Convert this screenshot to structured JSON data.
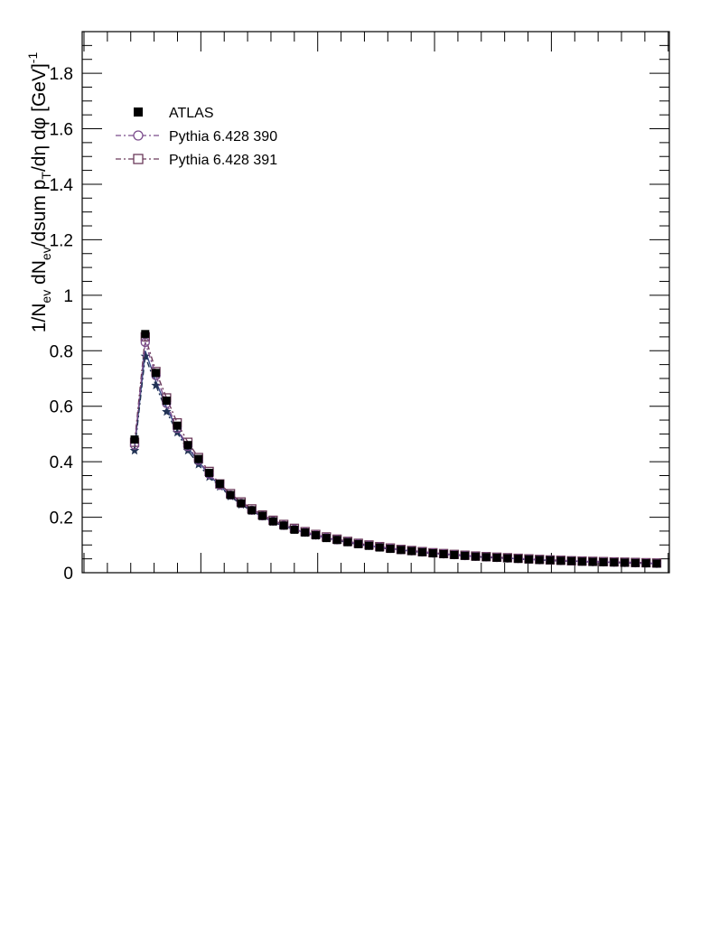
{
  "chart_data": {
    "type": "scatter",
    "title": "",
    "xlabel": "",
    "ylabel": "1/N_ev dN_ev/dsum p_T/dη dφ [GeV]^-1",
    "ylabel_parts": {
      "a": "1/N",
      "a_sub": "ev",
      "b": " dN",
      "b_sub": "ev",
      "c": "/dsum p",
      "c_sub": "T",
      "d": "/dη dφ  [GeV]",
      "d_sup": "-1"
    },
    "ylim": [
      0,
      1.95
    ],
    "yticks": [
      0,
      0.2,
      0.4,
      0.6,
      0.8,
      1,
      1.2,
      1.4,
      1.6,
      1.8
    ],
    "ytick_labels": [
      "0",
      "0.2",
      "0.4",
      "0.6",
      "0.8",
      "1",
      "1.2",
      "1.4",
      "1.6",
      "1.8"
    ],
    "grid": false,
    "legend_position": "top-left",
    "x": [
      0.25,
      0.75,
      1.25,
      1.75,
      2.25,
      2.75,
      3.25,
      3.75,
      4.25,
      4.75,
      5.25,
      5.75,
      6.25,
      6.75,
      7.25,
      7.75,
      8.25,
      8.75,
      9.25,
      9.75,
      10.25,
      10.75,
      11.25,
      11.75,
      12.25,
      12.75,
      13.25,
      13.75,
      14.25,
      14.75,
      15.25,
      15.75,
      16.25,
      16.75,
      17.25,
      17.75,
      18.25,
      18.75,
      19.25,
      19.75,
      20.25,
      20.75,
      21.25,
      21.75,
      22.25,
      22.75,
      23.25,
      23.75,
      24.25,
      24.75
    ],
    "series": [
      {
        "name": "ATLAS",
        "marker": "filled-square",
        "color": "#000000",
        "values": [
          0.48,
          0.86,
          0.72,
          0.62,
          0.53,
          0.46,
          0.41,
          0.36,
          0.32,
          0.28,
          0.25,
          0.225,
          0.205,
          0.185,
          0.17,
          0.155,
          0.145,
          0.135,
          0.125,
          0.118,
          0.11,
          0.103,
          0.097,
          0.091,
          0.086,
          0.082,
          0.078,
          0.074,
          0.07,
          0.067,
          0.064,
          0.061,
          0.058,
          0.056,
          0.054,
          0.052,
          0.05,
          0.048,
          0.046,
          0.045,
          0.043,
          0.042,
          0.04,
          0.039,
          0.038,
          0.037,
          0.036,
          0.035,
          0.034,
          0.033
        ]
      },
      {
        "name": "Pythia 6.428 390",
        "marker": "open-circle",
        "color": "#7b4c8c",
        "values": [
          0.46,
          0.83,
          0.71,
          0.61,
          0.52,
          0.455,
          0.405,
          0.355,
          0.315,
          0.28,
          0.25,
          0.225,
          0.205,
          0.186,
          0.171,
          0.157,
          0.146,
          0.136,
          0.127,
          0.119,
          0.112,
          0.105,
          0.099,
          0.093,
          0.088,
          0.083,
          0.079,
          0.075,
          0.071,
          0.068,
          0.065,
          0.062,
          0.059,
          0.057,
          0.055,
          0.053,
          0.051,
          0.049,
          0.047,
          0.046,
          0.044,
          0.043,
          0.041,
          0.04,
          0.039,
          0.038,
          0.037,
          0.036,
          0.035,
          0.034
        ]
      },
      {
        "name": "Pythia 6.428 391",
        "marker": "open-square",
        "color": "#6b3a5a",
        "values": [
          0.47,
          0.85,
          0.725,
          0.63,
          0.54,
          0.47,
          0.415,
          0.365,
          0.32,
          0.285,
          0.255,
          0.23,
          0.208,
          0.189,
          0.174,
          0.16,
          0.148,
          0.138,
          0.129,
          0.121,
          0.113,
          0.106,
          0.1,
          0.094,
          0.089,
          0.084,
          0.08,
          0.076,
          0.072,
          0.069,
          0.066,
          0.063,
          0.06,
          0.058,
          0.056,
          0.054,
          0.052,
          0.05,
          0.048,
          0.046,
          0.045,
          0.043,
          0.042,
          0.041,
          0.04,
          0.039,
          0.038,
          0.037,
          0.036,
          0.035
        ]
      },
      {
        "name": "",
        "marker": "star",
        "color": "#223355",
        "values": [
          0.44,
          0.78,
          0.675,
          0.58,
          0.505,
          0.44,
          0.39,
          0.345,
          0.31,
          0.275,
          0.245,
          0.222,
          0.202,
          0.183,
          0.168,
          0.154,
          0.143,
          0.133,
          0.124,
          0.116,
          0.109,
          0.102,
          0.096,
          0.09,
          0.085,
          0.081,
          0.077,
          0.073,
          0.069,
          0.066,
          0.063,
          0.06,
          0.057,
          0.055,
          0.053,
          0.051,
          0.049,
          0.047,
          0.045,
          0.044,
          0.042,
          0.041,
          0.039,
          0.038,
          0.037,
          0.036,
          0.035,
          0.034,
          0.033,
          0.032
        ]
      },
      {
        "name": "",
        "marker": "none",
        "color": "#3a4a8a",
        "values": [
          0.45,
          0.8,
          0.69,
          0.595,
          0.515,
          0.45,
          0.4,
          0.352,
          0.313,
          0.278,
          0.248,
          0.224,
          0.203,
          0.184,
          0.169,
          0.156,
          0.144,
          0.134,
          0.125,
          0.117,
          0.11,
          0.103,
          0.097,
          0.091,
          0.086,
          0.082,
          0.078,
          0.074,
          0.07,
          0.067,
          0.064,
          0.061,
          0.058,
          0.056,
          0.054,
          0.052,
          0.05,
          0.048,
          0.046,
          0.045,
          0.043,
          0.042,
          0.04,
          0.039,
          0.038,
          0.037,
          0.036,
          0.035,
          0.034,
          0.033
        ]
      }
    ]
  }
}
